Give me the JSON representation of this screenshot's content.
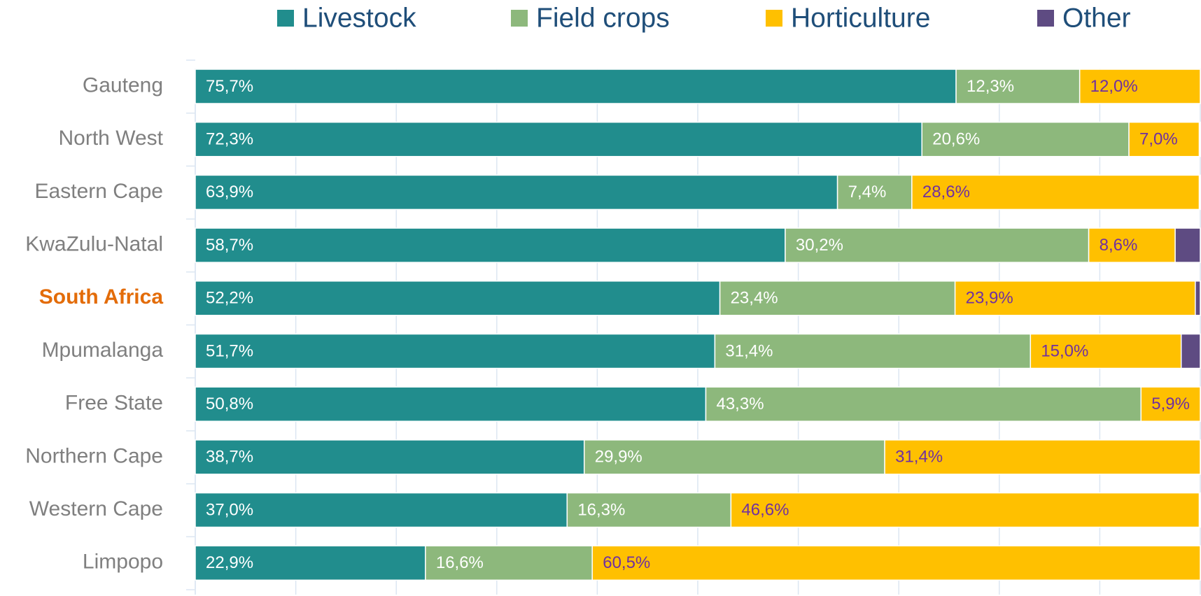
{
  "chart_data": {
    "type": "stacked-bar-horizontal",
    "categories": [
      "Gauteng",
      "North West",
      "Eastern Cape",
      "KwaZulu-Natal",
      "South Africa",
      "Mpumalanga",
      "Free State",
      "Northern Cape",
      "Western Cape",
      "Limpopo"
    ],
    "category_label_colors": [
      "#7f7f7f",
      "#7f7f7f",
      "#7f7f7f",
      "#7f7f7f",
      "#e36c09",
      "#7f7f7f",
      "#7f7f7f",
      "#7f7f7f",
      "#7f7f7f",
      "#7f7f7f"
    ],
    "series": [
      {
        "name": "Livestock",
        "color": "#218d8d",
        "label_color": "#ffffff",
        "values": [
          75.7,
          72.3,
          63.9,
          58.7,
          52.2,
          51.7,
          50.8,
          38.7,
          37.0,
          22.9
        ],
        "value_labels": [
          "75,7%",
          "72,3%",
          "63,9%",
          "58,7%",
          "52,2%",
          "51,7%",
          "50,8%",
          "38,7%",
          "37,0%",
          "22,9%"
        ]
      },
      {
        "name": "Field crops",
        "color": "#8db87c",
        "label_color": "#ffffff",
        "values": [
          12.3,
          20.6,
          7.4,
          30.2,
          23.4,
          31.4,
          43.3,
          29.9,
          16.3,
          16.6
        ],
        "value_labels": [
          "12,3%",
          "20,6%",
          "7,4%",
          "30,2%",
          "23,4%",
          "31,4%",
          "43,3%",
          "29,9%",
          "16,3%",
          "16,6%"
        ]
      },
      {
        "name": "Horticulture",
        "color": "#ffc000",
        "label_color": "#7030a0",
        "values": [
          12.0,
          7.0,
          28.6,
          8.6,
          23.9,
          15.0,
          5.9,
          31.4,
          46.6,
          60.5
        ],
        "value_labels": [
          "12,0%",
          "7,0%",
          "28,6%",
          "8,6%",
          "23,9%",
          "15,0%",
          "5,9%",
          "31,4%",
          "46,6%",
          "60,5%"
        ]
      },
      {
        "name": "Other",
        "color": "#5e4b82",
        "values": [
          0,
          0.1,
          0.1,
          2.5,
          0.5,
          1.9,
          0,
          0,
          0.1,
          0
        ]
      }
    ],
    "xlim": [
      0,
      100
    ],
    "xticks": [
      0,
      10,
      20,
      30,
      40,
      50,
      60,
      70,
      80,
      90,
      100
    ],
    "grid": true
  }
}
